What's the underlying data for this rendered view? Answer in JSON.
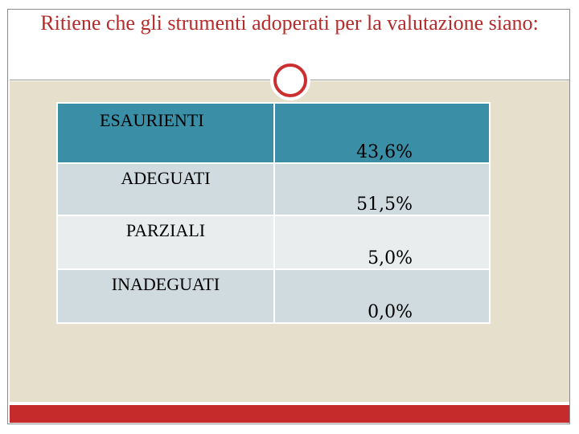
{
  "slide": {
    "title": "Ritiene che gli strumenti adoperati per la valutazione siano:"
  },
  "table": {
    "rows": [
      {
        "label": "ESAURIENTI",
        "value": "43,6%"
      },
      {
        "label": "ADEGUATI",
        "value": "51,5%"
      },
      {
        "label": "PARZIALI",
        "value": "5,0%"
      },
      {
        "label": "INADEGUATI",
        "value": "0,0%"
      }
    ]
  },
  "colors": {
    "title": "#b52b2b",
    "header_row": "#3a8ea5",
    "row_dark": "#d0dbdf",
    "row_light": "#e9edee",
    "content_background": "#e5dfcb",
    "accent_bar": "#c52b2b"
  }
}
